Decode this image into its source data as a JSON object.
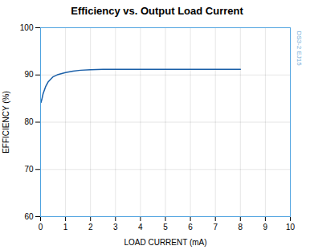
{
  "chart_data": {
    "type": "line",
    "title": "Efficiency vs. Output Load Current",
    "xlabel": "LOAD CURRENT (mA)",
    "ylabel": "EFFICIENCY (%)",
    "x": [
      0.02,
      0.05,
      0.1,
      0.2,
      0.3,
      0.5,
      0.7,
      1.0,
      1.3,
      1.6,
      2.0,
      2.5,
      3.0,
      4.0,
      5.0,
      6.0,
      7.0,
      8.0
    ],
    "values": [
      84.2,
      84.8,
      86.0,
      87.5,
      88.5,
      89.6,
      90.1,
      90.5,
      90.8,
      91.0,
      91.1,
      91.2,
      91.2,
      91.2,
      91.2,
      91.2,
      91.2,
      91.2
    ],
    "color": "#1a5fa8",
    "xlim": [
      0,
      10
    ],
    "ylim": [
      60,
      100
    ],
    "xticks": [
      0,
      1,
      2,
      3,
      4,
      5,
      6,
      7,
      8,
      9,
      10
    ],
    "yticks": [
      60,
      70,
      80,
      90,
      100
    ],
    "grid": true,
    "annotations": [
      "DS3-2 EJ15"
    ]
  }
}
